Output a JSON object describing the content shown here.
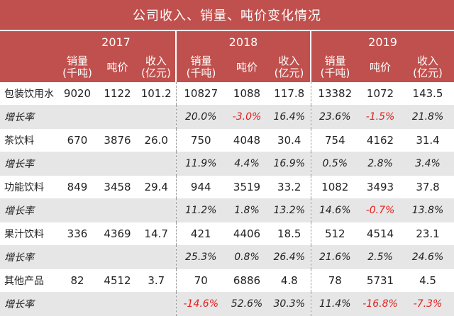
{
  "title": "公司收入、销量、吨价变化情况",
  "years": [
    "2017",
    "2018",
    "2019"
  ],
  "columns": [
    "销量\n(千吨)",
    "吨价",
    "收入\n(亿元)"
  ],
  "rows": [
    {
      "label": "包装饮用水",
      "values": [
        "9020",
        "1122",
        "101.2",
        "10827",
        "1088",
        "117.8",
        "13382",
        "1072",
        "143.5"
      ],
      "growth_label": "增长率",
      "growth": [
        "",
        "",
        "",
        "20.0%",
        "-3.0%",
        "16.4%",
        "23.6%",
        "-1.5%",
        "21.8%"
      ]
    },
    {
      "label": "茶饮料",
      "values": [
        "670",
        "3876",
        "26.0",
        "750",
        "4048",
        "30.4",
        "754",
        "4162",
        "31.4"
      ],
      "growth_label": "增长率",
      "growth": [
        "",
        "",
        "",
        "11.9%",
        "4.4%",
        "16.9%",
        "0.5%",
        "2.8%",
        "3.4%"
      ]
    },
    {
      "label": "功能饮料",
      "values": [
        "849",
        "3458",
        "29.4",
        "944",
        "3519",
        "33.2",
        "1082",
        "3493",
        "37.8"
      ],
      "growth_label": "增长率",
      "growth": [
        "",
        "",
        "",
        "11.2%",
        "1.8%",
        "13.2%",
        "14.6%",
        "-0.7%",
        "13.8%"
      ]
    },
    {
      "label": "果汁饮料",
      "values": [
        "336",
        "4369",
        "14.7",
        "421",
        "4406",
        "18.5",
        "512",
        "4514",
        "23.1"
      ],
      "growth_label": "增长率",
      "growth": [
        "",
        "",
        "",
        "25.3%",
        "0.8%",
        "26.4%",
        "21.6%",
        "2.5%",
        "24.6%"
      ]
    },
    {
      "label": "其他产品",
      "values": [
        "82",
        "4512",
        "3.7",
        "70",
        "6886",
        "4.8",
        "78",
        "5731",
        "4.5"
      ],
      "growth_label": "增长率",
      "growth": [
        "",
        "",
        "",
        "-14.6%",
        "52.6%",
        "30.3%",
        "11.4%",
        "-16.8%",
        "-7.3%"
      ]
    }
  ],
  "colors": {
    "header_bg": "#c0504d",
    "growth_bg": "#e6e6e6",
    "negative": "#e02020"
  }
}
